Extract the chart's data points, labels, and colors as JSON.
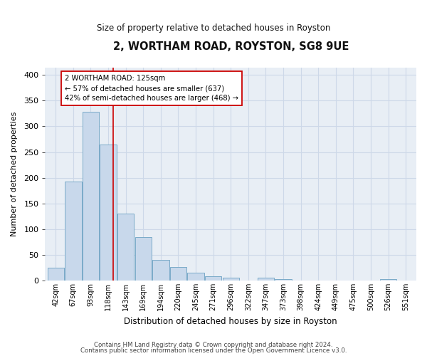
{
  "title": "2, WORTHAM ROAD, ROYSTON, SG8 9UE",
  "subtitle": "Size of property relative to detached houses in Royston",
  "xlabel": "Distribution of detached houses by size in Royston",
  "ylabel": "Number of detached properties",
  "bar_labels": [
    "42sqm",
    "67sqm",
    "93sqm",
    "118sqm",
    "143sqm",
    "169sqm",
    "194sqm",
    "220sqm",
    "245sqm",
    "271sqm",
    "296sqm",
    "322sqm",
    "347sqm",
    "373sqm",
    "398sqm",
    "424sqm",
    "449sqm",
    "475sqm",
    "500sqm",
    "526sqm",
    "551sqm"
  ],
  "bar_values": [
    25,
    192,
    328,
    265,
    130,
    85,
    40,
    27,
    15,
    8,
    5,
    0,
    5,
    3,
    0,
    0,
    0,
    0,
    0,
    3,
    0
  ],
  "bar_color": "#c8d8eb",
  "bar_edgecolor": "#7aaac8",
  "bar_linewidth": 0.7,
  "vline_x_index": 3.3,
  "vline_color": "#cc0000",
  "vline_linewidth": 1.2,
  "annotation_text": "2 WORTHAM ROAD: 125sqm\n← 57% of detached houses are smaller (637)\n42% of semi-detached houses are larger (468) →",
  "annotation_box_edgecolor": "#cc0000",
  "annotation_box_facecolor": "#ffffff",
  "ylim": [
    0,
    415
  ],
  "yticks": [
    0,
    50,
    100,
    150,
    200,
    250,
    300,
    350,
    400
  ],
  "grid_color": "#cdd8e8",
  "background_color": "#e8eef5",
  "footer_line1": "Contains HM Land Registry data © Crown copyright and database right 2024.",
  "footer_line2": "Contains public sector information licensed under the Open Government Licence v3.0."
}
